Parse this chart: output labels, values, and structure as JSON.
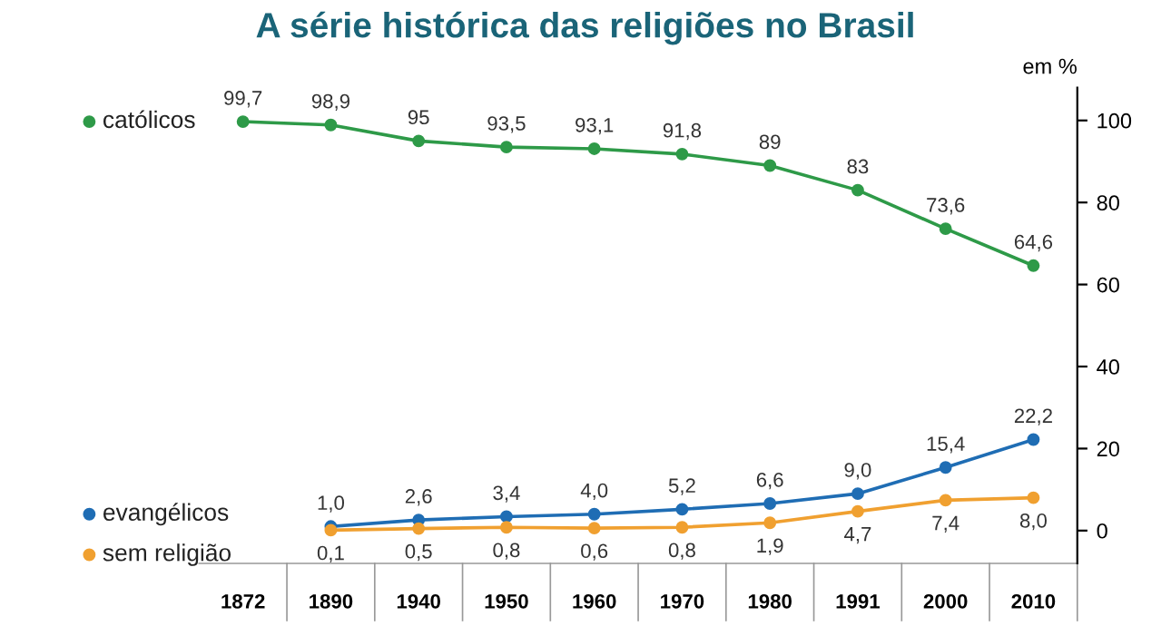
{
  "chart_data": {
    "type": "line",
    "title": "A série histórica das religiões no Brasil",
    "ylabel": "em %",
    "categories": [
      "1872",
      "1890",
      "1940",
      "1950",
      "1960",
      "1970",
      "1980",
      "1991",
      "2000",
      "2010"
    ],
    "series": [
      {
        "name": "católicos",
        "color": "#2e9a48",
        "values": [
          99.7,
          98.9,
          95,
          93.5,
          93.1,
          91.8,
          89,
          83,
          73.6,
          64.6
        ],
        "value_labels": [
          "99,7",
          "98,9",
          "95",
          "93,5",
          "93,1",
          "91,8",
          "89",
          "83",
          "73,6",
          "64,6"
        ]
      },
      {
        "name": "evangélicos",
        "color": "#1f6db4",
        "values": [
          null,
          1.0,
          2.6,
          3.4,
          4.0,
          5.2,
          6.6,
          9.0,
          15.4,
          22.2
        ],
        "value_labels": [
          null,
          "1,0",
          "2,6",
          "3,4",
          "4,0",
          "5,2",
          "6,6",
          "9,0",
          "15,4",
          "22,2"
        ]
      },
      {
        "name": "sem religião",
        "color": "#f0a030",
        "values": [
          null,
          0.1,
          0.5,
          0.8,
          0.6,
          0.8,
          1.9,
          4.7,
          7.4,
          8.0
        ],
        "value_labels": [
          null,
          "0,1",
          "0,5",
          "0,8",
          "0,6",
          "0,8",
          "1,9",
          "4,7",
          "7,4",
          "8,0"
        ]
      }
    ],
    "ylim": [
      -8,
      108
    ],
    "yticks": [
      0,
      20,
      40,
      60,
      80,
      100
    ],
    "grid": false,
    "legend": "left",
    "marker": "circle",
    "line_style": "solid"
  }
}
